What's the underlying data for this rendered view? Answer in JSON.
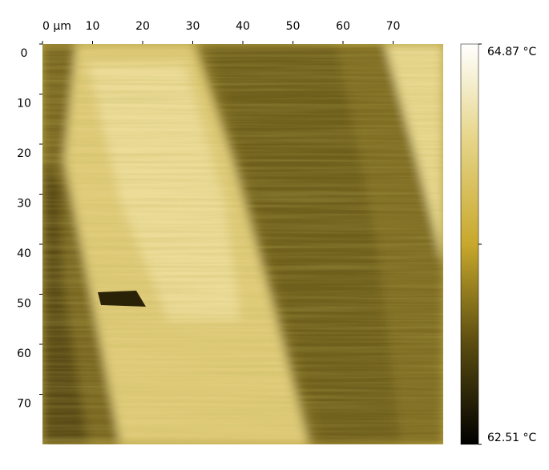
{
  "chart_data": {
    "type": "image",
    "xlim": [
      0,
      80
    ],
    "ylim": [
      0,
      80
    ],
    "xticks": [
      {
        "value": 0,
        "label": "0 µm"
      },
      10,
      20,
      30,
      40,
      50,
      60,
      70
    ],
    "yticks": [
      0,
      10,
      20,
      30,
      40,
      50,
      60,
      70
    ],
    "colorbar": {
      "lim": [
        62.51,
        64.87
      ],
      "ticks": [
        {
          "value": 62.51,
          "label": "62.51 °C"
        },
        {
          "value": 64.87,
          "label": "64.87 °C"
        }
      ]
    }
  }
}
